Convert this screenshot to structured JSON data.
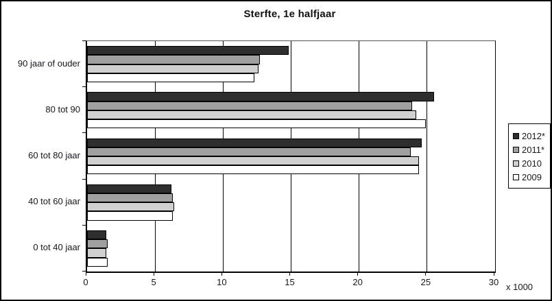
{
  "chart_data": {
    "type": "bar",
    "orientation": "horizontal",
    "title": "Sterfte, 1e halfjaar",
    "categories": [
      "90 jaar of ouder",
      "80 tot 90",
      "60 tot 80 jaar",
      "40 tot 60 jaar",
      "0 tot 40 jaar"
    ],
    "series": [
      {
        "name": "2012*",
        "color": "#2e2e2e",
        "values": [
          14.8,
          25.5,
          24.6,
          6.2,
          1.4
        ]
      },
      {
        "name": "2011*",
        "color": "#a0a0a0",
        "values": [
          12.7,
          23.9,
          23.8,
          6.3,
          1.5
        ]
      },
      {
        "name": "2010",
        "color": "#d0d0d0",
        "values": [
          12.6,
          24.2,
          24.4,
          6.4,
          1.4
        ]
      },
      {
        "name": "2009",
        "color": "#ffffff",
        "values": [
          12.3,
          24.9,
          24.4,
          6.3,
          1.5
        ]
      }
    ],
    "x_axis": {
      "min": 0,
      "max": 30,
      "tick_step": 5,
      "ticks": [
        0,
        5,
        10,
        15,
        20,
        25,
        30
      ],
      "unit_label": "x 1000"
    },
    "ylim": [
      0,
      30
    ],
    "grid": "vertical-only",
    "legend_position": "right",
    "colors": {
      "text": "#16161e",
      "axis": "#000000",
      "background": "#ffffff"
    }
  }
}
